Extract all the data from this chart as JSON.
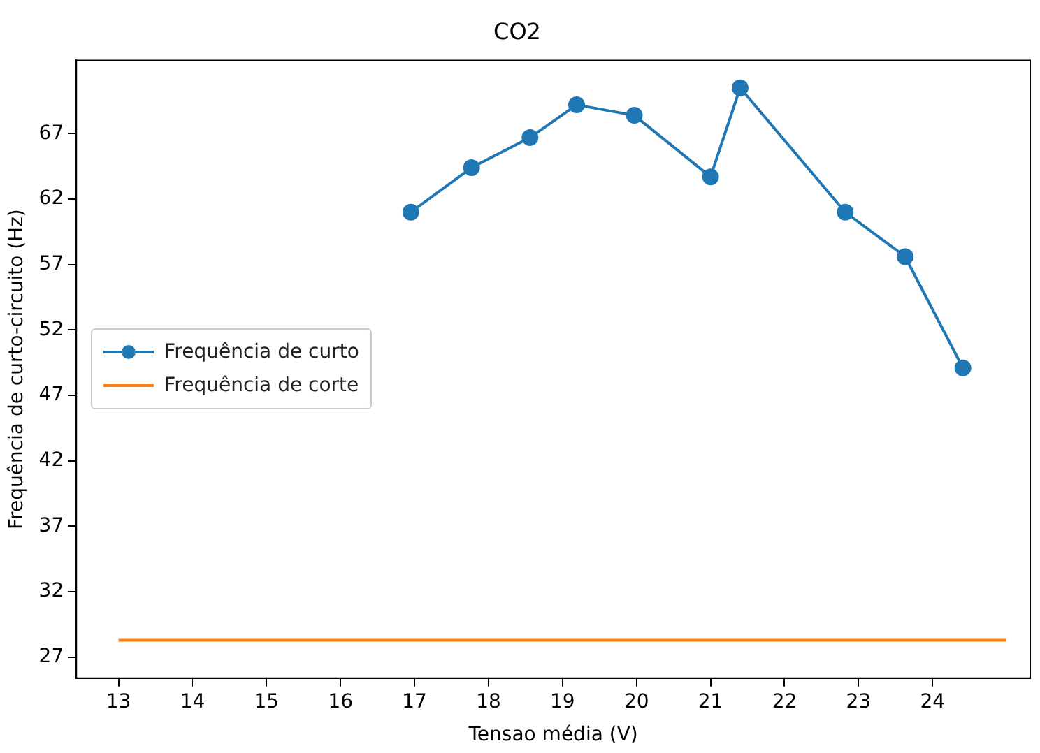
{
  "chart_data": {
    "type": "line",
    "title": "CO2",
    "xlabel": "Tensao média (V)",
    "ylabel": "Frequência de curto-circuito (Hz)",
    "xlim": [
      12.43,
      25.32
    ],
    "ylim": [
      25.4,
      72.6
    ],
    "xticks": [
      13,
      14,
      15,
      16,
      17,
      18,
      19,
      20,
      21,
      22,
      23,
      24
    ],
    "yticks": [
      27,
      32,
      37,
      42,
      47,
      52,
      57,
      62,
      67
    ],
    "grid": false,
    "legend": "center left",
    "series": [
      {
        "name": "Frequência de curto",
        "color": "#1f77b4",
        "marker": "circle",
        "x": [
          16.95,
          17.77,
          18.56,
          19.19,
          19.97,
          21.0,
          21.4,
          22.82,
          23.63,
          24.41
        ],
        "values": [
          61.0,
          64.4,
          66.7,
          69.2,
          68.4,
          63.7,
          70.5,
          61.0,
          57.6,
          49.1
        ]
      },
      {
        "name": "Frequência de corte",
        "color": "#ff7f0e",
        "marker": "none",
        "x": [
          13,
          25
        ],
        "values": [
          28.3,
          28.3
        ]
      }
    ]
  }
}
